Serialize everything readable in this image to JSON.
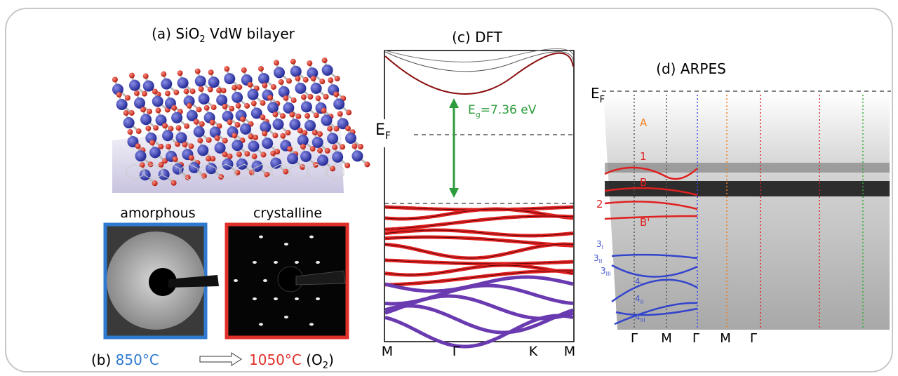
{
  "panel_a": {
    "title": [
      "(a) SiO",
      "2",
      " VdW bilayer"
    ]
  },
  "panel_b": {
    "label_amorphous": "amorphous",
    "label_crystalline": "crystalline",
    "prefix": "(b)",
    "temp_start": "850°C",
    "temp_end": "1050°C",
    "atmosphere": [
      "(O",
      "2",
      ")"
    ]
  },
  "panel_c": {
    "title": "(c) DFT",
    "fermi": [
      "E",
      "F"
    ],
    "gap": [
      "E",
      "g",
      "=7.36 eV"
    ],
    "k_labels": [
      "M",
      "Γ",
      "K",
      "M"
    ]
  },
  "panel_d": {
    "title": "(d) ARPES",
    "fermi": [
      "E",
      "F"
    ],
    "band_labels": [
      [
        "A",
        ""
      ],
      [
        "1",
        ""
      ],
      [
        "B",
        ""
      ],
      [
        "2",
        ""
      ],
      [
        "B'",
        ""
      ],
      [
        "3",
        "I"
      ],
      [
        "3",
        "II"
      ],
      [
        "3",
        "III"
      ],
      [
        "4",
        "I"
      ],
      [
        "4",
        "II"
      ],
      [
        "4",
        "III"
      ]
    ],
    "k_labels": [
      "Γ",
      "M",
      "Γ",
      "M",
      "Γ"
    ]
  }
}
